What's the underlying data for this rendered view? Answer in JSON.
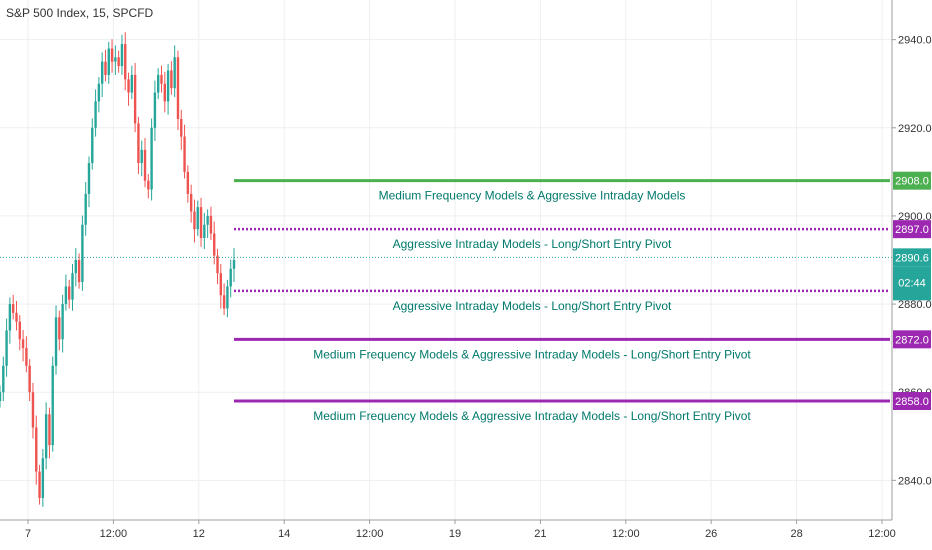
{
  "chart_data": {
    "type": "candlestick",
    "title": "S&P 500 Index, 15, SPCFD",
    "xlabel": "",
    "ylabel": "",
    "ylim": [
      2831,
      2949
    ],
    "y_ticks": [
      "2840.0",
      "2860.0",
      "2880.0",
      "2900.0",
      "2920.0",
      "2940.0"
    ],
    "x_ticks": [
      "7",
      "12:00",
      "12",
      "14",
      "12:00",
      "19",
      "21",
      "12:00",
      "26",
      "28",
      "12:00"
    ],
    "current_price": "2890.6",
    "countdown": "02:44",
    "grid": true,
    "colors": {
      "up": "#26a69a",
      "down": "#ef5350",
      "green_level": "#4caf50",
      "purple_level": "#9c27b0",
      "label_text": "#00796b"
    },
    "levels": [
      {
        "price": 2908.0,
        "label": "2908.0",
        "text": "Medium Frequency Models & Aggressive Intraday Models",
        "color": "#4caf50",
        "style": "solid"
      },
      {
        "price": 2897.0,
        "label": "2897.0",
        "text": "Aggressive Intraday Models - Long/Short Entry Pivot",
        "color": "#9c27b0",
        "style": "dotted"
      },
      {
        "price": 2883.0,
        "label": "2883.0",
        "text": "Aggressive Intraday Models - Long/Short Entry Pivot",
        "color": "#9c27b0",
        "style": "dotted"
      },
      {
        "price": 2872.0,
        "label": "2872.0",
        "text": "Medium Frequency Models & Aggressive Intraday Models - Long/Short Entry Pivot",
        "color": "#9c27b0",
        "style": "solid"
      },
      {
        "price": 2858.0,
        "label": "2858.0",
        "text": "Medium Frequency Models & Aggressive Intraday Models - Long/Short Entry Pivot",
        "color": "#9c27b0",
        "style": "solid"
      }
    ],
    "close_path": [
      2860,
      2866,
      2874,
      2880,
      2878,
      2876,
      2872,
      2870,
      2866,
      2860,
      2852,
      2842,
      2836,
      2845,
      2855,
      2848,
      2866,
      2877,
      2872,
      2880,
      2884,
      2881,
      2887,
      2890,
      2885,
      2898,
      2905,
      2912,
      2920,
      2926,
      2930,
      2935,
      2932,
      2938,
      2935,
      2936,
      2934,
      2939,
      2931,
      2928,
      2932,
      2921,
      2912,
      2915,
      2908,
      2906,
      2920,
      2928,
      2932,
      2930,
      2926,
      2933,
      2929,
      2936,
      2922,
      2918,
      2910,
      2905,
      2901,
      2897,
      2902,
      2895,
      2898,
      2900,
      2896,
      2891,
      2887,
      2882,
      2879,
      2884,
      2888,
      2890
    ],
    "bar_count": 72
  }
}
